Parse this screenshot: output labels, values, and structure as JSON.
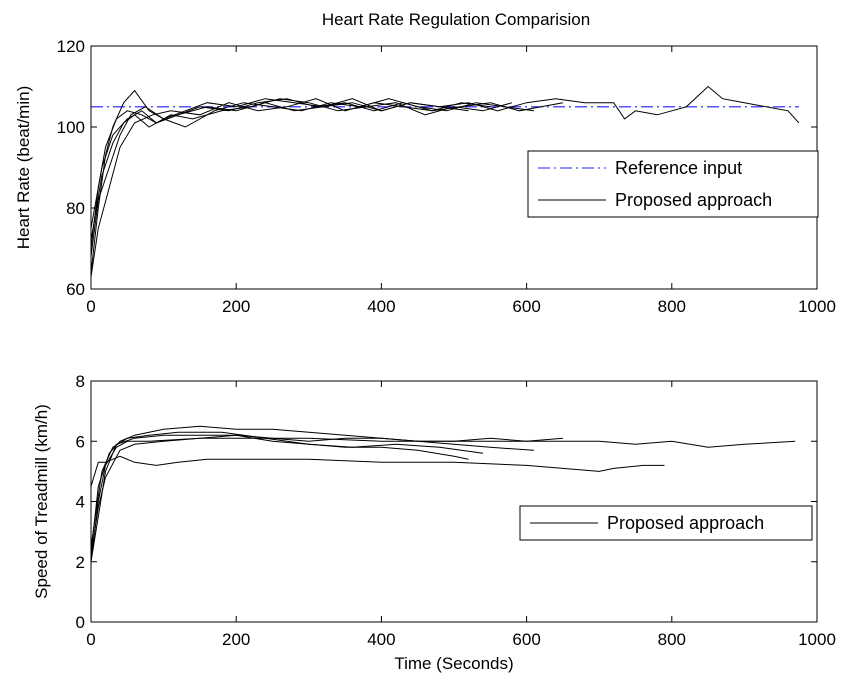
{
  "chart_data": [
    {
      "type": "line",
      "title": "Heart Rate Regulation Comparision",
      "xlabel": "",
      "ylabel": "Heart Rate (beat/min)",
      "xlim": [
        0,
        1000
      ],
      "ylim": [
        60,
        120
      ],
      "xticks": [
        "0",
        "200",
        "400",
        "600",
        "800",
        "1000"
      ],
      "yticks": [
        "60",
        "80",
        "100",
        "120"
      ],
      "grid": false,
      "legend_position": "center-right",
      "legend": [
        "Reference input",
        "Proposed approach"
      ],
      "series": [
        {
          "name": "Reference input",
          "style": "dash-dot",
          "color": "#1f1fff",
          "x": [
            0,
            975
          ],
          "y": [
            105,
            105
          ]
        },
        {
          "name": "Proposed approach",
          "style": "solid",
          "color": "#000000",
          "x": [
            0,
            10,
            20,
            30,
            45,
            60,
            80,
            100,
            130,
            160,
            200,
            240,
            280,
            320,
            360,
            400,
            440,
            480,
            520,
            560,
            600,
            640,
            680,
            720,
            735,
            750,
            780,
            820,
            850,
            870,
            900,
            930,
            960,
            975
          ],
          "y": [
            64,
            80,
            93,
            100,
            106,
            109,
            104,
            102,
            104,
            106,
            105,
            107,
            106,
            105,
            106,
            104,
            106,
            105,
            106,
            104,
            106,
            107,
            106,
            106,
            102,
            104,
            103,
            105,
            110,
            107,
            106,
            105,
            104,
            101
          ]
        },
        {
          "x": [
            0,
            10,
            20,
            35,
            50,
            70,
            90,
            120,
            150,
            190,
            230,
            270,
            310,
            350,
            390,
            430,
            470,
            510,
            550,
            590,
            620,
            650
          ],
          "y": [
            70,
            85,
            95,
            102,
            104,
            103,
            101,
            103,
            105,
            104,
            106,
            107,
            105,
            106,
            104,
            106,
            104,
            105,
            106,
            104,
            105,
            106
          ]
        },
        {
          "x": [
            0,
            10,
            25,
            40,
            55,
            75,
            100,
            130,
            170,
            210,
            250,
            290,
            330,
            370,
            410,
            450,
            490,
            530,
            570,
            610
          ],
          "y": [
            68,
            82,
            90,
            98,
            103,
            105,
            102,
            100,
            104,
            106,
            105,
            104,
            106,
            105,
            107,
            105,
            104,
            106,
            105,
            104
          ]
        },
        {
          "x": [
            0,
            15,
            30,
            45,
            60,
            80,
            110,
            140,
            180,
            220,
            260,
            300,
            340,
            380,
            420,
            460,
            500,
            540,
            580
          ],
          "y": [
            72,
            88,
            96,
            101,
            103,
            100,
            103,
            102,
            104,
            105,
            107,
            106,
            104,
            105,
            106,
            103,
            105,
            104,
            106
          ]
        },
        {
          "x": [
            0,
            10,
            25,
            40,
            60,
            85,
            110,
            150,
            190,
            230,
            270,
            310,
            350,
            390,
            430,
            470,
            510,
            550
          ],
          "y": [
            63,
            75,
            85,
            95,
            101,
            103,
            104,
            103,
            106,
            104,
            105,
            107,
            104,
            106,
            105,
            104,
            106,
            105
          ]
        },
        {
          "x": [
            0,
            15,
            30,
            50,
            70,
            90,
            120,
            160,
            200,
            240,
            280,
            320,
            360,
            400,
            440,
            480,
            520
          ],
          "y": [
            75,
            90,
            98,
            102,
            104,
            101,
            103,
            105,
            104,
            106,
            104,
            105,
            107,
            104,
            106,
            105,
            104
          ]
        }
      ]
    },
    {
      "type": "line",
      "title": "",
      "xlabel": "Time (Seconds)",
      "ylabel": "Speed of Treadmill (km/h)",
      "xlim": [
        0,
        1000
      ],
      "ylim": [
        0,
        8
      ],
      "xticks": [
        "0",
        "200",
        "400",
        "600",
        "800",
        "1000"
      ],
      "yticks": [
        "0",
        "2",
        "4",
        "6",
        "8"
      ],
      "grid": false,
      "legend_position": "center-right",
      "legend": [
        "Proposed approach"
      ],
      "series": [
        {
          "name": "Proposed approach",
          "style": "solid",
          "color": "#000000",
          "x": [
            0,
            10,
            20,
            35,
            50,
            80,
            150,
            200,
            300,
            400,
            500,
            600,
            700,
            750,
            800,
            850,
            900,
            970
          ],
          "y": [
            2.0,
            4.0,
            5.2,
            5.8,
            6.0,
            6.0,
            6.1,
            6.1,
            6.1,
            6.0,
            6.0,
            6.0,
            6.0,
            5.9,
            6.0,
            5.8,
            5.9,
            6.0
          ]
        },
        {
          "x": [
            0,
            10,
            20,
            35,
            60,
            100,
            150,
            200,
            250,
            300,
            350,
            400,
            450,
            500,
            550,
            600,
            650
          ],
          "y": [
            2.0,
            3.5,
            5.0,
            5.9,
            6.1,
            6.2,
            6.2,
            6.2,
            6.1,
            6.0,
            6.1,
            6.1,
            6.0,
            6.0,
            6.1,
            6.0,
            6.1
          ]
        },
        {
          "x": [
            0,
            10,
            25,
            40,
            60,
            100,
            150,
            200,
            250,
            300,
            350,
            400,
            450,
            500,
            550,
            610
          ],
          "y": [
            2.3,
            4.5,
            5.6,
            6.0,
            6.2,
            6.4,
            6.5,
            6.4,
            6.4,
            6.3,
            6.2,
            6.1,
            6.0,
            5.9,
            5.8,
            5.7
          ]
        },
        {
          "x": [
            0,
            10,
            20,
            40,
            60,
            100,
            150,
            200,
            250,
            300,
            350,
            400,
            450,
            500,
            520
          ],
          "y": [
            2.2,
            3.8,
            4.8,
            5.7,
            5.9,
            6.0,
            6.1,
            6.2,
            6.0,
            5.9,
            5.8,
            5.8,
            5.7,
            5.5,
            5.4
          ]
        },
        {
          "x": [
            0,
            15,
            30,
            50,
            80,
            120,
            180,
            240,
            300,
            360,
            420,
            480,
            540
          ],
          "y": [
            2.5,
            5.0,
            5.8,
            6.1,
            6.2,
            6.3,
            6.3,
            6.1,
            5.9,
            5.8,
            5.9,
            5.8,
            5.6
          ]
        },
        {
          "x": [
            0,
            10,
            20,
            40,
            60,
            90,
            120,
            160,
            200,
            300,
            400,
            500,
            600,
            650,
            700,
            720,
            760,
            790
          ],
          "y": [
            4.5,
            5.3,
            5.3,
            5.5,
            5.3,
            5.2,
            5.3,
            5.4,
            5.4,
            5.4,
            5.3,
            5.3,
            5.2,
            5.1,
            5.0,
            5.1,
            5.2,
            5.2
          ]
        }
      ]
    }
  ]
}
